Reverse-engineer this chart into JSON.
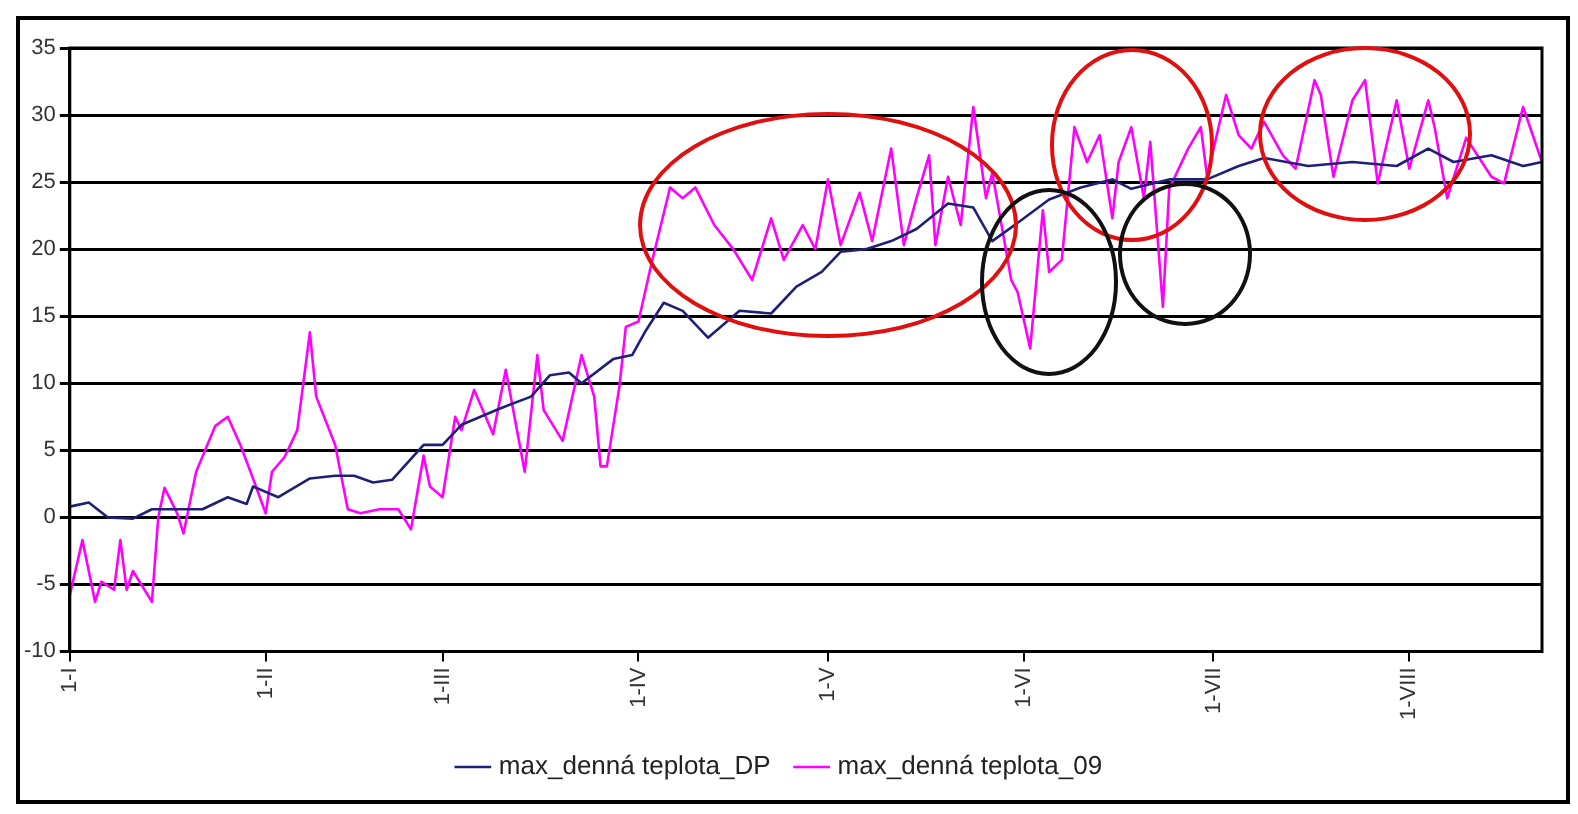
{
  "chart_data": {
    "type": "line",
    "xlim": [
      "--01-01",
      "--08-22"
    ],
    "xticks": [
      {
        "value": "--01-01",
        "label": "1-I"
      },
      {
        "value": "--02-01",
        "label": "1-II"
      },
      {
        "value": "--03-01",
        "label": "1-III"
      },
      {
        "value": "--04-01",
        "label": "1-IV"
      },
      {
        "value": "--05-01",
        "label": "1-V"
      },
      {
        "value": "--06-01",
        "label": "1-VI"
      },
      {
        "value": "--07-01",
        "label": "1-VII"
      },
      {
        "value": "--08-01",
        "label": "1-VIII"
      }
    ],
    "ylim": [
      -10,
      35
    ],
    "yticks": [
      -10,
      -5,
      0,
      5,
      10,
      15,
      20,
      25,
      30,
      35
    ],
    "grid": "y",
    "legend": "bottom",
    "marker": "none",
    "line_style": "solid",
    "series": [
      {
        "name": "max_denná teplota_DP",
        "color": "#1f1f7a",
        "x": [
          "--01-01",
          "--01-04",
          "--01-07",
          "--01-11",
          "--01-14",
          "--01-22",
          "--01-26",
          "--01-29",
          "--01-30",
          "--02-03",
          "--02-08",
          "--02-12",
          "--02-15",
          "--02-18",
          "--02-21",
          "--02-26",
          "--03-01",
          "--03-04",
          "--03-10",
          "--03-15",
          "--03-18",
          "--03-21",
          "--03-23",
          "--03-28",
          "--03-31",
          "--04-02",
          "--04-05",
          "--04-08",
          "--04-12",
          "--04-17",
          "--04-22",
          "--04-26",
          "--04-30",
          "--05-03",
          "--05-07",
          "--05-11",
          "--05-15",
          "--05-20",
          "--05-24",
          "--05-27",
          "--06-01",
          "--06-05",
          "--06-10",
          "--06-15",
          "--06-18",
          "--06-24",
          "--06-30",
          "--07-05",
          "--07-09",
          "--07-16",
          "--07-23",
          "--07-30",
          "--08-04",
          "--08-08",
          "--08-14",
          "--08-19",
          "--08-22"
        ],
        "values": [
          0.8,
          1.1,
          0,
          -0.1,
          0.6,
          0.6,
          1.5,
          1,
          2.3,
          1.5,
          2.9,
          3.1,
          3.1,
          2.6,
          2.8,
          5.4,
          5.4,
          6.9,
          8.1,
          9,
          10.6,
          10.8,
          10,
          11.8,
          12.1,
          13.8,
          16,
          15.4,
          13.4,
          15.4,
          15.2,
          17.2,
          18.3,
          19.8,
          20,
          20.6,
          21.5,
          23.4,
          23.1,
          20.6,
          22.3,
          23.7,
          24.6,
          25.2,
          24.5,
          25.2,
          25.2,
          26.2,
          26.8,
          26.2,
          26.5,
          26.2,
          27.5,
          26.5,
          27,
          26.2,
          26.5
        ]
      },
      {
        "name": "max_denná teplota_09",
        "color": "#ff00ff",
        "x": [
          "--01-01",
          "--01-03",
          "--01-05",
          "--01-06",
          "--01-08",
          "--01-09",
          "--01-10",
          "--01-11",
          "--01-14",
          "--01-15",
          "--01-16",
          "--01-18",
          "--01-19",
          "--01-21",
          "--01-24",
          "--01-26",
          "--01-28",
          "--01-30",
          "--02-01",
          "--02-02",
          "--02-04",
          "--02-06",
          "--02-08",
          "--02-09",
          "--02-12",
          "--02-14",
          "--02-16",
          "--02-19",
          "--02-22",
          "--02-24",
          "--02-26",
          "--02-27",
          "--03-01",
          "--03-03",
          "--03-04",
          "--03-06",
          "--03-09",
          "--03-11",
          "--03-14",
          "--03-16",
          "--03-17",
          "--03-20",
          "--03-23",
          "--03-25",
          "--03-26",
          "--03-27",
          "--03-29",
          "--03-30",
          "--04-01",
          "--04-03",
          "--04-06",
          "--04-08",
          "--04-10",
          "--04-13",
          "--04-16",
          "--04-19",
          "--04-22",
          "--04-24",
          "--04-27",
          "--04-29",
          "--05-01",
          "--05-03",
          "--05-06",
          "--05-08",
          "--05-11",
          "--05-13",
          "--05-15",
          "--05-17",
          "--05-18",
          "--05-20",
          "--05-22",
          "--05-24",
          "--05-26",
          "--05-27",
          "--05-30",
          "--05-31",
          "--06-02",
          "--06-04",
          "--06-05",
          "--06-07",
          "--06-09",
          "--06-11",
          "--06-13",
          "--06-15",
          "--06-16",
          "--06-18",
          "--06-20",
          "--06-21",
          "--06-23",
          "--06-24",
          "--06-27",
          "--06-29",
          "--06-30",
          "--07-03",
          "--07-05",
          "--07-07",
          "--07-09",
          "--07-12",
          "--07-14",
          "--07-17",
          "--07-18",
          "--07-20",
          "--07-23",
          "--07-25",
          "--07-27",
          "--07-30",
          "--08-01",
          "--08-04",
          "--08-05",
          "--08-07",
          "--08-10",
          "--08-14",
          "--08-16",
          "--08-19",
          "--08-22"
        ],
        "values": [
          -5.8,
          -1.7,
          -6.3,
          -4.8,
          -5.4,
          -1.7,
          -5.4,
          -4,
          -6.3,
          0,
          2.2,
          0.3,
          -1.2,
          3.4,
          6.8,
          7.5,
          5.4,
          2.9,
          0.3,
          3.4,
          4.5,
          6.5,
          13.8,
          9,
          5.4,
          0.6,
          0.3,
          0.6,
          0.6,
          -0.9,
          4.6,
          2.3,
          1.5,
          7.5,
          6.5,
          9.5,
          6.2,
          11,
          3.4,
          12.1,
          8,
          5.7,
          12.1,
          9,
          3.8,
          3.8,
          9.8,
          14.2,
          14.6,
          18.8,
          24.6,
          23.8,
          24.6,
          21.8,
          20,
          17.7,
          22.3,
          19.2,
          21.8,
          20,
          25.2,
          20.3,
          24.2,
          20.6,
          27.5,
          20.3,
          23.8,
          27,
          20.3,
          25.4,
          21.8,
          30.6,
          23.8,
          25.7,
          17.7,
          16.8,
          12.6,
          22.9,
          18.3,
          19.2,
          29.1,
          26.5,
          28.5,
          22.3,
          26.5,
          29.1,
          23.8,
          28,
          15.7,
          24.5,
          27.5,
          29.1,
          25.4,
          31.5,
          28.5,
          27.5,
          29.5,
          27,
          26,
          32.6,
          31.5,
          25.4,
          31.1,
          32.6,
          24.9,
          31.1,
          26,
          31.1,
          29.1,
          23.8,
          28.3,
          25.4,
          24.9,
          30.6,
          26.5
        ]
      }
    ]
  }
}
